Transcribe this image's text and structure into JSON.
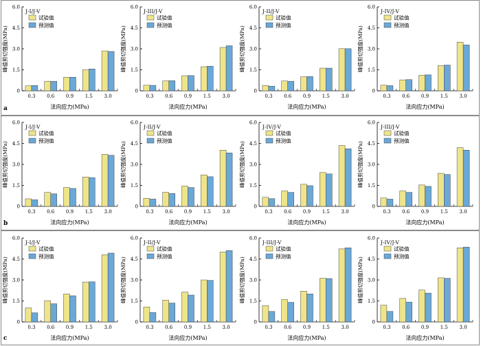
{
  "rows": [
    {
      "label": "a",
      "charts": [
        {
          "panel": "J-I/J-V",
          "chart_data": {
            "type": "bar",
            "categories": [
              "0.3",
              "0.6",
              "0.9",
              "1.5",
              "3.0"
            ],
            "series": [
              {
                "name": "试验值",
                "values": [
                  0.36,
                  0.68,
                  0.97,
                  1.5,
                  2.85
                ]
              },
              {
                "name": "预测值",
                "values": [
                  0.38,
                  0.68,
                  0.97,
                  1.56,
                  2.81
                ]
              }
            ],
            "xlabel": "法向应力(MPa)",
            "ylabel": "峰值剪切强度(MPa)",
            "ylim": [
              0,
              6
            ],
            "yticks": [
              "0",
              "1.5",
              "3.0",
              "4.5",
              "6.0"
            ]
          }
        },
        {
          "panel": "J-III/J-V",
          "chart_data": {
            "type": "bar",
            "categories": [
              "0.3",
              "0.6",
              "0.9",
              "1.5",
              "3.0"
            ],
            "series": [
              {
                "name": "试验值",
                "values": [
                  0.4,
                  0.71,
                  1.08,
                  1.72,
                  3.1
                ]
              },
              {
                "name": "预测值",
                "values": [
                  0.39,
                  0.72,
                  1.09,
                  1.76,
                  3.22
                ]
              }
            ],
            "xlabel": "法向应力(MPa)",
            "ylabel": "峰值剪切强度(MPa)",
            "ylim": [
              0,
              6
            ],
            "yticks": [
              "0",
              "1.5",
              "3.0",
              "4.5",
              "6.0"
            ]
          }
        },
        {
          "panel": "J-II/J-V",
          "chart_data": {
            "type": "bar",
            "categories": [
              "0.3",
              "0.6",
              "0.9",
              "1.5",
              "3.0"
            ],
            "series": [
              {
                "name": "试验值",
                "values": [
                  0.38,
                  0.7,
                  1.0,
                  1.62,
                  3.01
                ]
              },
              {
                "name": "预测值",
                "values": [
                  0.33,
                  0.68,
                  1.02,
                  1.62,
                  3.01
                ]
              }
            ],
            "xlabel": "法向应力(MPa)",
            "ylabel": "峰值剪切强度(MPa)",
            "ylim": [
              0,
              6
            ],
            "yticks": [
              "0",
              "1.5",
              "3.0",
              "4.5",
              "6.0"
            ]
          }
        },
        {
          "panel": "J-IV/J-V",
          "chart_data": {
            "type": "bar",
            "categories": [
              "0.3",
              "0.6",
              "0.9",
              "1.5",
              "3.0"
            ],
            "series": [
              {
                "name": "试验值",
                "values": [
                  0.4,
                  0.78,
                  1.11,
                  1.8,
                  3.48
                ]
              },
              {
                "name": "预测值",
                "values": [
                  0.37,
                  0.8,
                  1.14,
                  1.84,
                  3.28
                ]
              }
            ],
            "xlabel": "法向应力(MPa)",
            "ylabel": "峰值剪切强度(MPa)",
            "ylim": [
              0,
              6
            ],
            "yticks": [
              "0",
              "1.5",
              "3.0",
              "4.5",
              "6.0"
            ]
          }
        }
      ]
    },
    {
      "label": "b",
      "charts": [
        {
          "panel": "J-I/J-V",
          "chart_data": {
            "type": "bar",
            "categories": [
              "0.3",
              "0.6",
              "0.9",
              "1.5",
              "3.0"
            ],
            "series": [
              {
                "name": "试验值",
                "values": [
                  0.54,
                  1.0,
                  1.35,
                  2.1,
                  3.72
                ]
              },
              {
                "name": "预测值",
                "values": [
                  0.47,
                  0.9,
                  1.28,
                  2.05,
                  3.65
                ]
              }
            ],
            "xlabel": "法向应力(MPa)",
            "ylabel": "峰值剪切强度(MPa)",
            "ylim": [
              0,
              6
            ],
            "yticks": [
              "0",
              "1.5",
              "3.0",
              "4.5",
              "6.0"
            ]
          }
        },
        {
          "panel": "J-II/J-V",
          "chart_data": {
            "type": "bar",
            "categories": [
              "0.3",
              "0.6",
              "0.9",
              "1.5",
              "3.0"
            ],
            "series": [
              {
                "name": "试验值",
                "values": [
                  0.58,
                  1.01,
                  1.45,
                  2.25,
                  4.02
                ]
              },
              {
                "name": "预测值",
                "values": [
                  0.52,
                  0.92,
                  1.35,
                  2.12,
                  3.82
                ]
              }
            ],
            "xlabel": "法向应力(MPa)",
            "ylabel": "峰值剪切强度(MPa)",
            "ylim": [
              0,
              6
            ],
            "yticks": [
              "0",
              "1.5",
              "3.0",
              "4.5",
              "6.0"
            ]
          }
        },
        {
          "panel": "J-IV/J-V",
          "chart_data": {
            "type": "bar",
            "categories": [
              "0.3",
              "0.6",
              "0.9",
              "1.5",
              "3.0"
            ],
            "series": [
              {
                "name": "试验值",
                "values": [
                  0.65,
                  1.1,
                  1.58,
                  2.42,
                  4.35
                ]
              },
              {
                "name": "预测值",
                "values": [
                  0.55,
                  1.0,
                  1.48,
                  2.32,
                  4.12
                ]
              }
            ],
            "xlabel": "法向应力(MPa)",
            "ylabel": "峰值剪切强度(MPa)",
            "ylim": [
              0,
              6
            ],
            "yticks": [
              "0",
              "1.5",
              "3.0",
              "4.5",
              "6.0"
            ]
          }
        },
        {
          "panel": "J-III/J-V",
          "chart_data": {
            "type": "bar",
            "categories": [
              "0.3",
              "0.6",
              "0.9",
              "1.5",
              "3.0"
            ],
            "series": [
              {
                "name": "试验值",
                "values": [
                  0.6,
                  1.1,
                  1.53,
                  2.36,
                  4.2
                ]
              },
              {
                "name": "预测值",
                "values": [
                  0.52,
                  1.0,
                  1.43,
                  2.28,
                  4.02
                ]
              }
            ],
            "xlabel": "法向应力(MPa)",
            "ylabel": "峰值剪切强度(MPa)",
            "ylim": [
              0,
              6
            ],
            "yticks": [
              "0",
              "1.5",
              "3.0",
              "4.5",
              "6.0"
            ]
          }
        }
      ]
    },
    {
      "label": "c",
      "charts": [
        {
          "panel": "J-I/J-V",
          "chart_data": {
            "type": "bar",
            "categories": [
              "0.3",
              "0.6",
              "0.9",
              "1.5",
              "3.0"
            ],
            "series": [
              {
                "name": "试验值",
                "values": [
                  1.0,
                  1.52,
                  2.0,
                  2.85,
                  4.8
                ]
              },
              {
                "name": "预测值",
                "values": [
                  0.65,
                  1.3,
                  1.87,
                  2.87,
                  4.92
                ]
              }
            ],
            "xlabel": "法向应力(MPa)",
            "ylabel": "峰值剪切强度(MPa)",
            "ylim": [
              0,
              6
            ],
            "yticks": [
              "0",
              "1.5",
              "3.0",
              "4.5",
              "6.0"
            ]
          }
        },
        {
          "panel": "J-II/J-V",
          "chart_data": {
            "type": "bar",
            "categories": [
              "0.3",
              "0.6",
              "0.9",
              "1.5",
              "3.0"
            ],
            "series": [
              {
                "name": "试验值",
                "values": [
                  1.07,
                  1.56,
                  2.13,
                  3.0,
                  5.0
                ]
              },
              {
                "name": "预测值",
                "values": [
                  0.67,
                  1.35,
                  1.92,
                  2.97,
                  5.1
                ]
              }
            ],
            "xlabel": "法向应力(MPa)",
            "ylabel": "峰值剪切强度(MPa)",
            "ylim": [
              0,
              6
            ],
            "yticks": [
              "0",
              "1.5",
              "3.0",
              "4.5",
              "6.0"
            ]
          }
        },
        {
          "panel": "J-III/J-V",
          "chart_data": {
            "type": "bar",
            "categories": [
              "0.3",
              "0.6",
              "0.9",
              "1.5",
              "3.0"
            ],
            "series": [
              {
                "name": "试验值",
                "values": [
                  1.17,
                  1.6,
                  2.2,
                  3.12,
                  5.22
                ]
              },
              {
                "name": "预测值",
                "values": [
                  0.75,
                  1.4,
                  2.0,
                  3.1,
                  5.3
                ]
              }
            ],
            "xlabel": "法向应力(MPa)",
            "ylabel": "峰值剪切强度(MPa)",
            "ylim": [
              0,
              6
            ],
            "yticks": [
              "0",
              "1.5",
              "3.0",
              "4.5",
              "6.0"
            ]
          }
        },
        {
          "panel": "J-IV/J-V",
          "chart_data": {
            "type": "bar",
            "categories": [
              "0.3",
              "0.6",
              "0.9",
              "1.5",
              "3.0"
            ],
            "series": [
              {
                "name": "试验值",
                "values": [
                  1.2,
                  1.68,
                  2.28,
                  3.15,
                  5.3
                ]
              },
              {
                "name": "预测值",
                "values": [
                  0.75,
                  1.42,
                  2.06,
                  3.12,
                  5.35
                ]
              }
            ],
            "xlabel": "法向应力(MPa)",
            "ylabel": "峰值剪切强度(MPa)",
            "ylim": [
              0,
              6
            ],
            "yticks": [
              "0",
              "1.5",
              "3.0",
              "4.5",
              "6.0"
            ]
          }
        }
      ]
    }
  ],
  "colors": {
    "series1": "#eee58a",
    "series2": "#6aa8d8",
    "axis": "#000000",
    "frame": "#888888"
  }
}
